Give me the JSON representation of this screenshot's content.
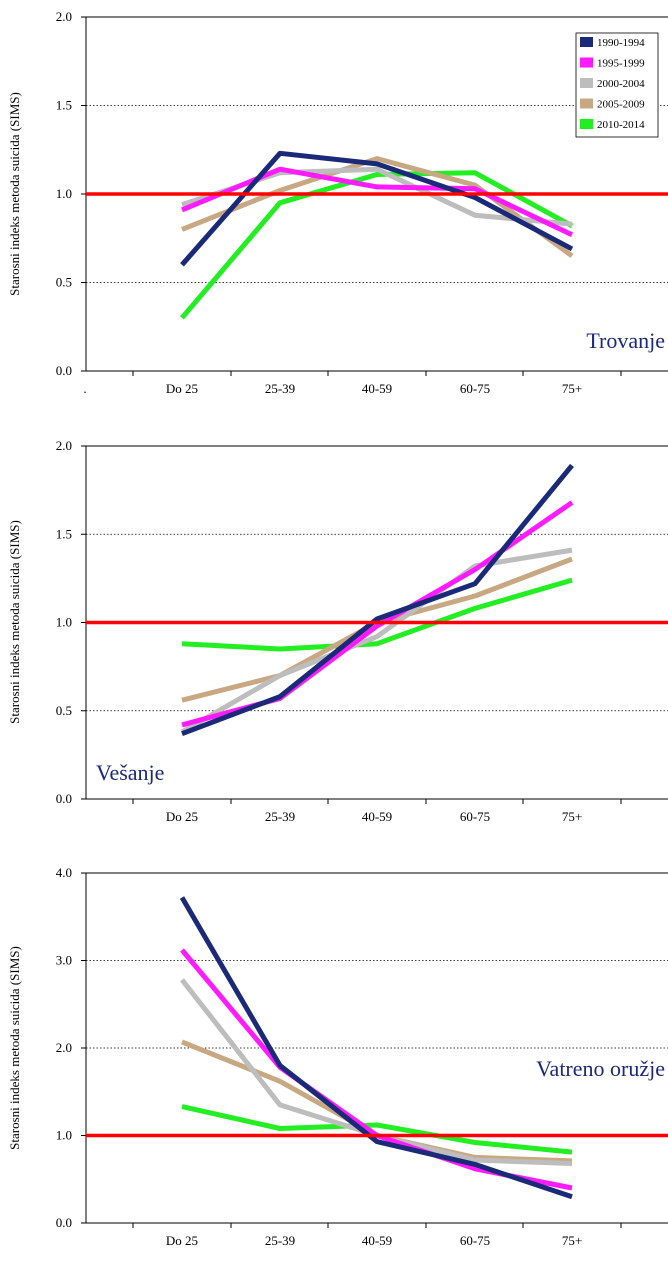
{
  "chart_data": [
    {
      "type": "line",
      "method_label": "Trovanje",
      "ylabel": "Starosni indeks metoda suicida (SIMS)",
      "categories": [
        "Do 25",
        "25-39",
        "40-59",
        "60-75",
        "75+"
      ],
      "extra_x_tick": ".",
      "ylim": [
        0,
        2
      ],
      "yticks": [
        "0.0",
        "0.5",
        "1.0",
        "1.5",
        "2.0"
      ],
      "reference_line": 1.0,
      "legend": true,
      "legend_position": "top-right",
      "series": [
        {
          "name": "1990-1994",
          "values": [
            0.6,
            1.23,
            1.17,
            0.98,
            0.69
          ]
        },
        {
          "name": "1995-1999",
          "values": [
            0.91,
            1.14,
            1.04,
            1.03,
            0.77
          ]
        },
        {
          "name": "2000-2004",
          "values": [
            0.94,
            1.12,
            1.14,
            0.88,
            0.83
          ]
        },
        {
          "name": "2005-2009",
          "values": [
            0.8,
            1.02,
            1.2,
            1.05,
            0.65
          ]
        },
        {
          "name": "2010-2014",
          "values": [
            0.3,
            0.95,
            1.11,
            1.12,
            0.82
          ]
        }
      ]
    },
    {
      "type": "line",
      "method_label": "Vešanje",
      "ylabel": "Starosni indeks metoda suicida (SIMS)",
      "categories": [
        "Do 25",
        "25-39",
        "40-59",
        "60-75",
        "75+"
      ],
      "ylim": [
        0,
        2
      ],
      "yticks": [
        "0.0",
        "0.5",
        "1.0",
        "1.5",
        "2.0"
      ],
      "reference_line": 1.0,
      "legend": false,
      "series": [
        {
          "name": "1990-1994",
          "values": [
            0.37,
            0.58,
            1.02,
            1.22,
            1.89
          ]
        },
        {
          "name": "1995-1999",
          "values": [
            0.42,
            0.57,
            0.98,
            1.3,
            1.68
          ]
        },
        {
          "name": "2000-2004",
          "values": [
            0.38,
            0.7,
            0.92,
            1.32,
            1.41
          ]
        },
        {
          "name": "2005-2009",
          "values": [
            0.56,
            0.7,
            1.0,
            1.15,
            1.36
          ]
        },
        {
          "name": "2010-2014",
          "values": [
            0.88,
            0.85,
            0.88,
            1.08,
            1.24
          ]
        }
      ]
    },
    {
      "type": "line",
      "method_label": "Vatreno oružje",
      "ylabel": "Starosni indeks metoda suicida (SIMS)",
      "categories": [
        "Do 25",
        "25-39",
        "40-59",
        "60-75",
        "75+"
      ],
      "ylim": [
        0,
        4
      ],
      "yticks": [
        "0.0",
        "1.0",
        "2.0",
        "3.0",
        "4.0"
      ],
      "reference_line": 1.0,
      "legend": false,
      "series": [
        {
          "name": "1990-1994",
          "values": [
            3.72,
            1.8,
            0.93,
            0.67,
            0.3
          ]
        },
        {
          "name": "1995-1999",
          "values": [
            3.12,
            1.78,
            1.0,
            0.62,
            0.4
          ]
        },
        {
          "name": "2000-2004",
          "values": [
            2.78,
            1.35,
            1.0,
            0.72,
            0.68
          ]
        },
        {
          "name": "2005-2009",
          "values": [
            2.07,
            1.62,
            1.0,
            0.75,
            0.71
          ]
        },
        {
          "name": "2010-2014",
          "values": [
            1.33,
            1.08,
            1.12,
            0.92,
            0.81
          ]
        }
      ]
    }
  ],
  "colors": {
    "1990-1994": "#1b2a78",
    "1995-1999": "#ff1aff",
    "2000-2004": "#bdbdbd",
    "2005-2009": "#c8a882",
    "2010-2014": "#22ee22",
    "reference": "#ff0000",
    "method_label": "#1b2a78"
  }
}
